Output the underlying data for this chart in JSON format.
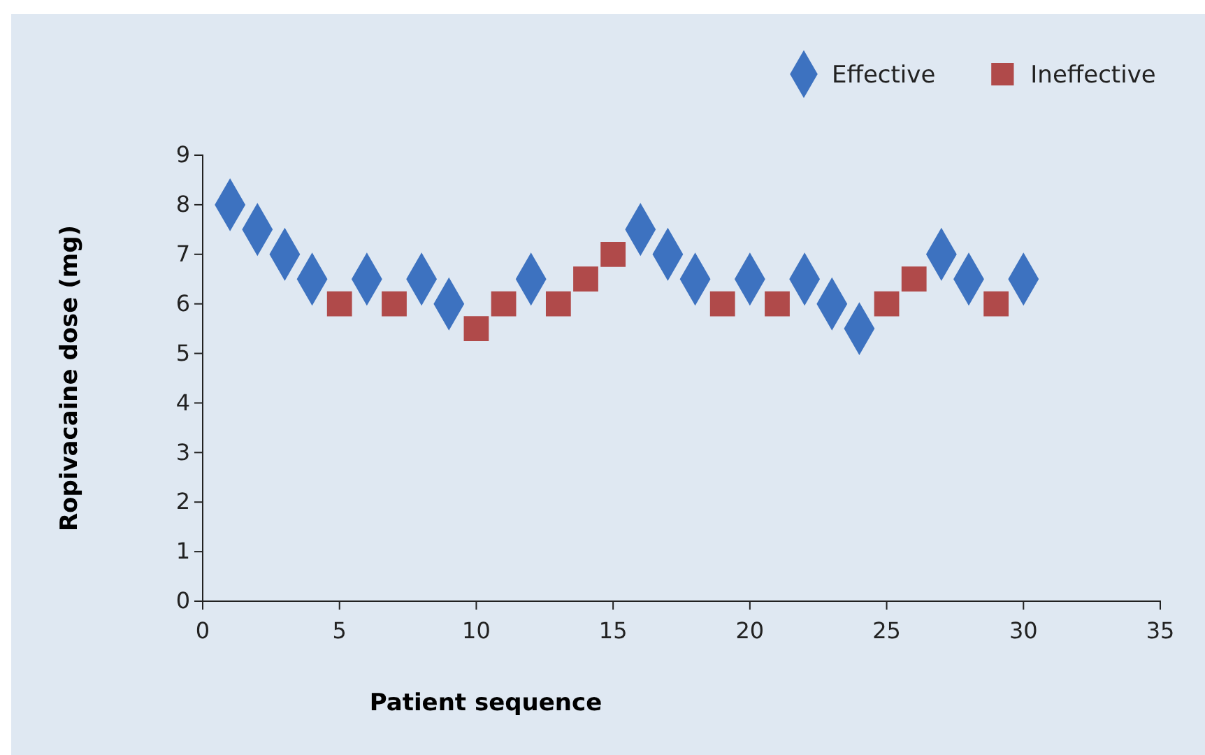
{
  "chart_data": {
    "type": "scatter",
    "xlabel": "Patient sequence",
    "ylabel": "Ropivacaine dose (mg)",
    "xlim": [
      0,
      35
    ],
    "xticks": [
      0,
      5,
      10,
      15,
      20,
      25,
      30,
      35
    ],
    "ylim": [
      0,
      9
    ],
    "yticks": [
      0,
      1,
      2,
      3,
      4,
      5,
      6,
      7,
      8,
      9
    ],
    "grid": false,
    "legend": "top right",
    "series": [
      {
        "name": "Effective",
        "color": "#3d72c0",
        "marker": "diamond",
        "x": [
          1,
          2,
          3,
          4,
          6,
          8,
          9,
          12,
          16,
          17,
          18,
          20,
          22,
          23,
          24,
          27,
          28,
          30
        ],
        "values": [
          8,
          7.5,
          7,
          6.5,
          6.5,
          6.5,
          6,
          6.5,
          7.5,
          7,
          6.5,
          6.5,
          6.5,
          6,
          5.5,
          7,
          6.5,
          6.5
        ]
      },
      {
        "name": "Ineffective",
        "color": "#b04a4a",
        "marker": "square",
        "x": [
          5,
          7,
          10,
          11,
          13,
          14,
          15,
          19,
          21,
          25,
          26,
          29
        ],
        "values": [
          6,
          6,
          5.5,
          6,
          6,
          6.5,
          7,
          6,
          6,
          6,
          6.5,
          6
        ]
      }
    ]
  }
}
